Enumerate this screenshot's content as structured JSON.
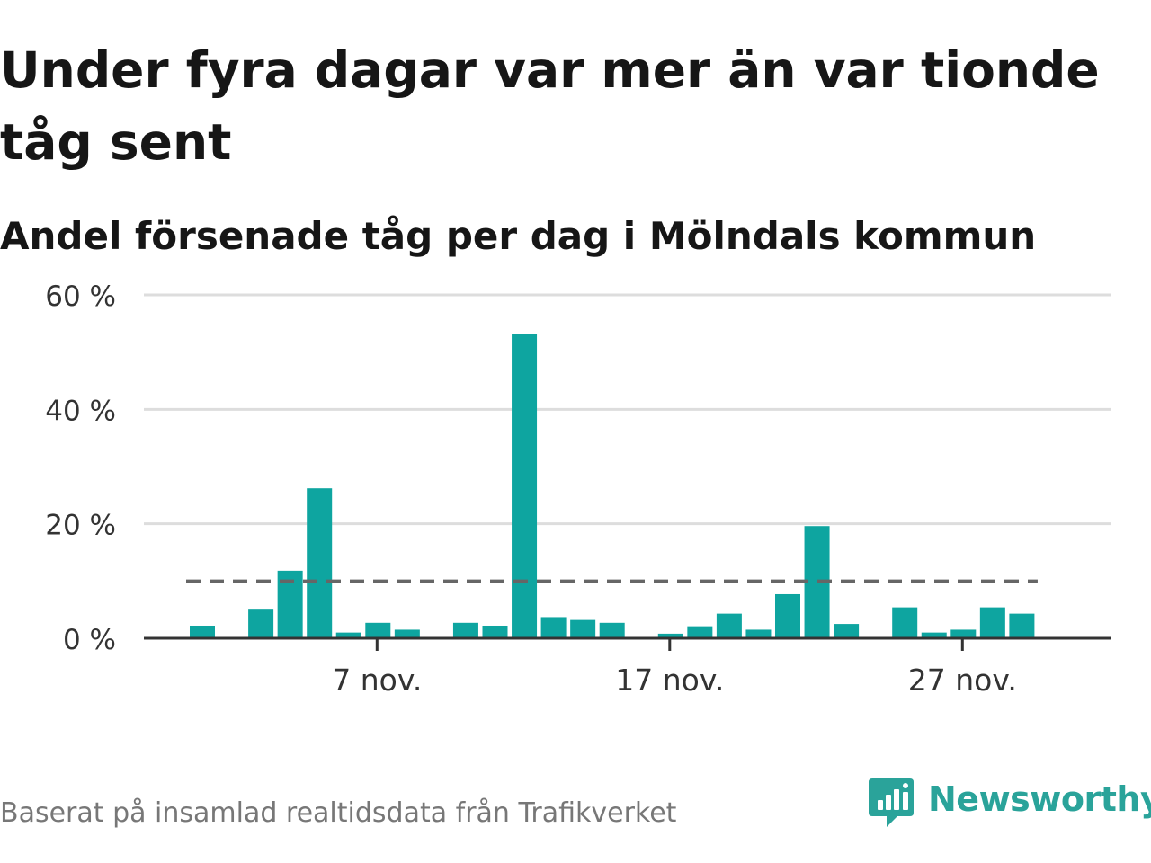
{
  "title": "Under fyra dagar var mer än var tionde tåg sent",
  "subtitle": "Andel försenade tåg per dag i Mölndals kommun",
  "footer": {
    "source": "Baserat på insamlad realtidsdata från Trafikverket",
    "brand": "Newsworthy"
  },
  "colors": {
    "bar": "#0ea5a0",
    "reference_line": "#666666",
    "grid": "#dddddd",
    "axis": "#333333",
    "brand": "#2aa39a"
  },
  "chart_data": {
    "type": "bar",
    "title": "",
    "xlabel": "",
    "ylabel": "",
    "ylim": [
      0,
      60
    ],
    "y_ticks": [
      "0 %",
      "20 %",
      "40 %",
      "60 %"
    ],
    "y_tick_values": [
      0,
      20,
      40,
      60
    ],
    "x_ticks": [
      {
        "label": "7 nov.",
        "day": 7
      },
      {
        "label": "17 nov.",
        "day": 17
      },
      {
        "label": "27 nov.",
        "day": 27
      }
    ],
    "month": "nov.",
    "days": [
      1,
      2,
      3,
      4,
      5,
      6,
      7,
      8,
      9,
      10,
      11,
      12,
      13,
      14,
      15,
      16,
      17,
      18,
      19,
      20,
      21,
      22,
      23,
      24,
      25,
      26,
      27,
      28,
      29,
      30
    ],
    "values": [
      2.2,
      0,
      5.0,
      11.8,
      26.2,
      1.0,
      2.7,
      1.5,
      0,
      2.7,
      2.2,
      53.2,
      3.7,
      3.2,
      2.7,
      0,
      0.8,
      2.1,
      4.3,
      1.5,
      7.7,
      19.6,
      2.5,
      0,
      5.4,
      1.0,
      1.5,
      5.4,
      4.3,
      0
    ],
    "reference_line": {
      "value": 10,
      "from_day": 1,
      "to_day": 30,
      "style": "dashed"
    },
    "grid": true,
    "legend": "none"
  }
}
